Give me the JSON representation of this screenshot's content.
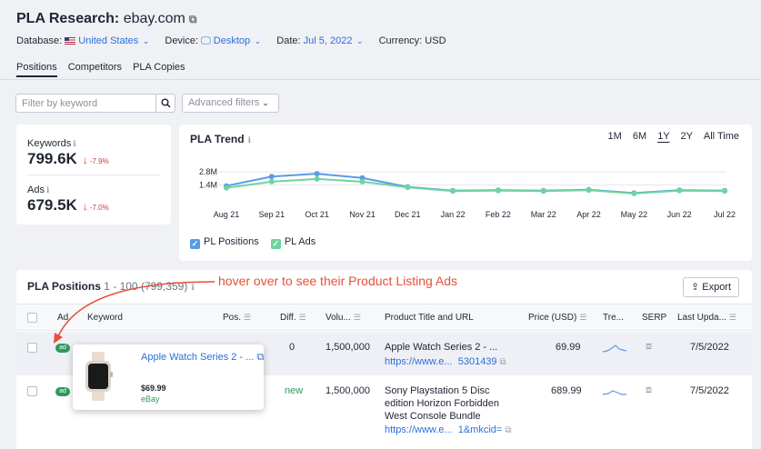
{
  "header": {
    "title": "PLA Research:",
    "domain": "ebay.com",
    "database_label": "Database:",
    "database_value": "United States",
    "device_label": "Device:",
    "device_value": "Desktop",
    "date_label": "Date:",
    "date_value": "Jul 5, 2022",
    "currency": "Currency: USD"
  },
  "tabs": [
    "Positions",
    "Competitors",
    "PLA Copies"
  ],
  "filter": {
    "placeholder": "Filter by keyword",
    "advanced": "Advanced filters"
  },
  "summary": {
    "keywords_label": "Keywords",
    "keywords_value": "799.6K",
    "keywords_change": "-7.9%",
    "ads_label": "Ads",
    "ads_value": "679.5K",
    "ads_change": "-7.0%"
  },
  "trend": {
    "title": "PLA Trend",
    "periods": [
      "1M",
      "6M",
      "1Y",
      "2Y",
      "All Time"
    ],
    "selected_period": "1Y",
    "legend": [
      "PL Positions",
      "PL Ads"
    ]
  },
  "chart_data": {
    "type": "line",
    "title": "PLA Trend",
    "x": [
      "Aug 21",
      "Sep 21",
      "Oct 21",
      "Nov 21",
      "Dec 21",
      "Jan 22",
      "Feb 22",
      "Mar 22",
      "Apr 22",
      "May 22",
      "Jun 22",
      "Jul 22"
    ],
    "y_ticks": [
      "2.8M",
      "1.4M"
    ],
    "series": [
      {
        "name": "PL Positions",
        "color": "#5a9be6",
        "values": [
          1.3,
          2.3,
          2.6,
          2.15,
          1.2,
          0.8,
          0.85,
          0.8,
          0.9,
          0.55,
          0.85,
          0.8
        ]
      },
      {
        "name": "PL Ads",
        "color": "#6fd3a0",
        "values": [
          1.1,
          1.75,
          2.05,
          1.75,
          1.15,
          0.75,
          0.8,
          0.75,
          0.85,
          0.5,
          0.8,
          0.75
        ]
      }
    ],
    "ylim": [
      0,
      3.0
    ]
  },
  "positions": {
    "title": "PLA Positions",
    "range": "1 - 100 (799,359)",
    "export": "Export",
    "columns": [
      "Ad",
      "Keyword",
      "Pos.",
      "Diff.",
      "Volu...",
      "Product Title and URL",
      "Price (USD)",
      "Tre...",
      "SERP",
      "Last Upda..."
    ],
    "rows": [
      {
        "ad": "ad",
        "diff": "0",
        "volume": "1,500,000",
        "product_title": "Apple Watch Series 2 - ...",
        "url_a": "https://www.e...",
        "url_b": "5301439",
        "price": "69.99",
        "updated": "7/5/2022"
      },
      {
        "ad": "ad",
        "diff": "new",
        "volume": "1,500,000",
        "product_title_1": "Sony Playstation 5 Disc",
        "product_title_2": "edition Horizon Forbidden",
        "product_title_3": "West Console Bundle",
        "url_a": "https://www.e...",
        "url_b": "1&mkcid=",
        "price": "689.99",
        "updated": "7/5/2022"
      }
    ]
  },
  "popup": {
    "title": "Apple Watch Series 2 - ...",
    "price": "$69.99",
    "store": "eBay"
  },
  "annotation": "hover over to see their Product Listing Ads"
}
